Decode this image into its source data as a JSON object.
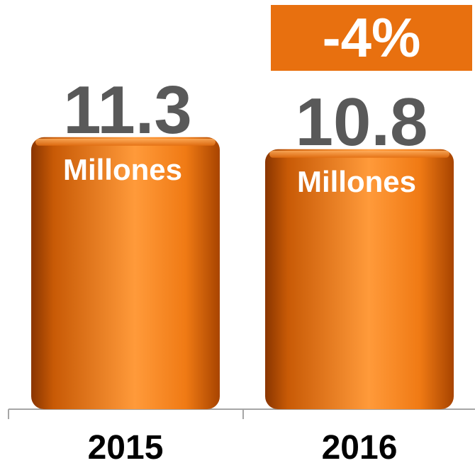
{
  "chart_data": {
    "type": "bar",
    "categories": [
      "2015",
      "2016"
    ],
    "values": [
      11.3,
      10.8
    ],
    "value_labels": [
      "11.3",
      "10.8"
    ],
    "unit_label": "Millones",
    "change_label": "-4%",
    "title": "",
    "xlabel": "",
    "ylabel": "",
    "grid": false,
    "legend": "none",
    "colors": {
      "bar_dark": "#b44a02",
      "bar_mid": "#ec7a15",
      "bar_light": "#ff9a3a",
      "bar_top": "#f18a2a",
      "badge": "#e8700f",
      "value_text": "#595959",
      "unit_text": "#ffffff",
      "axis_line": "#a6a6a6",
      "category_text": "#000000"
    }
  }
}
